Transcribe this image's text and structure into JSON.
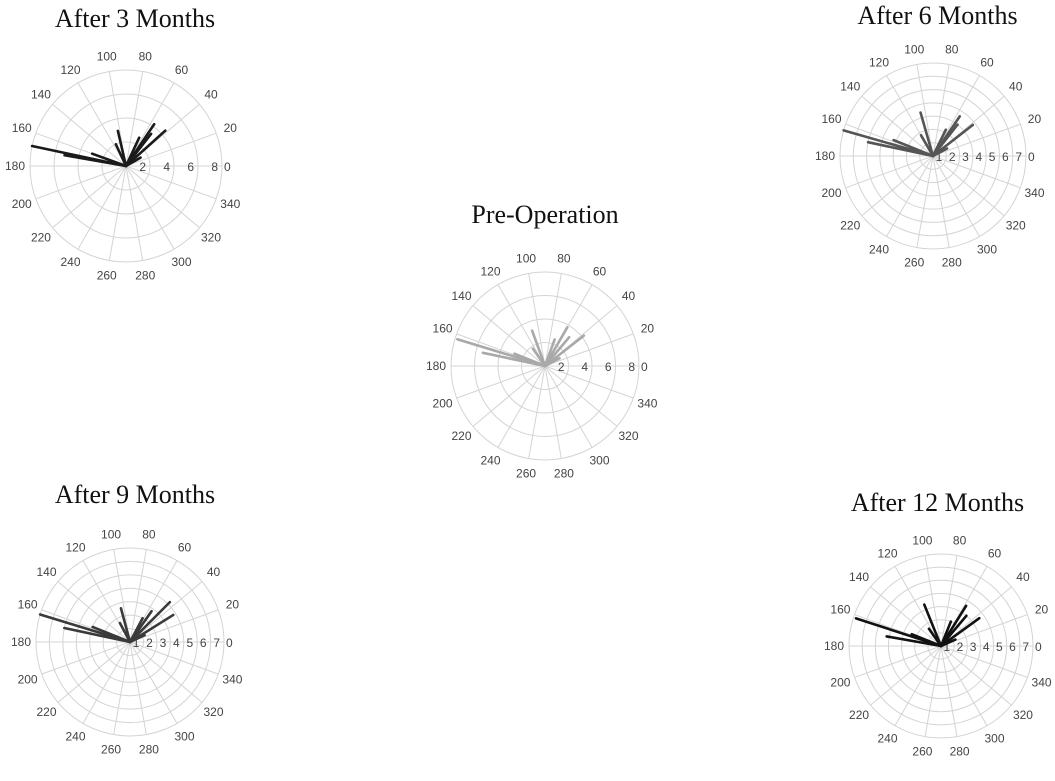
{
  "chart_data": [
    {
      "type": "polar-line",
      "title": "After 3 Months",
      "color": "#1a1a1a",
      "rmax": 8,
      "rticks": [
        "2",
        "4",
        "6",
        "8"
      ],
      "rzero": "0",
      "theta_labels": [
        "0",
        "20",
        "40",
        "60",
        "80",
        "100",
        "120",
        "140",
        "160",
        "180",
        "200",
        "220",
        "240",
        "260",
        "280",
        "300",
        "320",
        "340"
      ],
      "series": [
        {
          "theta": 168,
          "r": 8.0
        },
        {
          "theta": 170,
          "r": 5.2
        },
        {
          "theta": 160,
          "r": 3.0
        },
        {
          "theta": 103,
          "r": 3.0
        },
        {
          "theta": 115,
          "r": 2.0
        },
        {
          "theta": 56,
          "r": 4.2
        },
        {
          "theta": 52,
          "r": 3.4
        },
        {
          "theta": 42,
          "r": 4.4
        },
        {
          "theta": 65,
          "r": 2.6
        },
        {
          "theta": 30,
          "r": 1.4
        }
      ]
    },
    {
      "type": "polar-line",
      "title": "After 6 Months",
      "color": "#555555",
      "rmax": 7,
      "rticks": [
        "1",
        "2",
        "3",
        "4",
        "5",
        "6",
        "7"
      ],
      "rzero": "0",
      "theta_labels": [
        "0",
        "20",
        "40",
        "60",
        "80",
        "100",
        "120",
        "140",
        "160",
        "180",
        "200",
        "220",
        "240",
        "260",
        "280",
        "300",
        "320",
        "340"
      ],
      "series": [
        {
          "theta": 164,
          "r": 7.0
        },
        {
          "theta": 168,
          "r": 5.0
        },
        {
          "theta": 158,
          "r": 3.2
        },
        {
          "theta": 106,
          "r": 3.4
        },
        {
          "theta": 120,
          "r": 1.8
        },
        {
          "theta": 56,
          "r": 3.6
        },
        {
          "theta": 52,
          "r": 3.0
        },
        {
          "theta": 38,
          "r": 3.8
        },
        {
          "theta": 64,
          "r": 2.2
        },
        {
          "theta": 28,
          "r": 1.2
        }
      ]
    },
    {
      "type": "polar-line",
      "title": "Pre-Operation",
      "color": "#a9a9a9",
      "rmax": 8,
      "rticks": [
        "2",
        "4",
        "6",
        "8"
      ],
      "rzero": "0",
      "theta_labels": [
        "0",
        "20",
        "40",
        "60",
        "80",
        "100",
        "120",
        "140",
        "160",
        "180",
        "200",
        "220",
        "240",
        "260",
        "280",
        "300",
        "320",
        "340"
      ],
      "series": [
        {
          "theta": 163,
          "r": 7.8
        },
        {
          "theta": 168,
          "r": 5.4
        },
        {
          "theta": 158,
          "r": 2.8
        },
        {
          "theta": 110,
          "r": 3.2
        },
        {
          "theta": 125,
          "r": 1.8
        },
        {
          "theta": 60,
          "r": 3.8
        },
        {
          "theta": 50,
          "r": 3.2
        },
        {
          "theta": 38,
          "r": 4.2
        },
        {
          "theta": 70,
          "r": 2.4
        },
        {
          "theta": 28,
          "r": 1.4
        }
      ]
    },
    {
      "type": "polar-line",
      "title": "After 9 Months",
      "color": "#3a3a3a",
      "rmax": 7,
      "rticks": [
        "1",
        "2",
        "3",
        "4",
        "5",
        "6",
        "7"
      ],
      "rzero": "0",
      "theta_labels": [
        "0",
        "20",
        "40",
        "60",
        "80",
        "100",
        "120",
        "140",
        "160",
        "180",
        "200",
        "220",
        "240",
        "260",
        "280",
        "300",
        "320",
        "340"
      ],
      "series": [
        {
          "theta": 163,
          "r": 7.0
        },
        {
          "theta": 168,
          "r": 5.0
        },
        {
          "theta": 158,
          "r": 3.0
        },
        {
          "theta": 105,
          "r": 2.6
        },
        {
          "theta": 118,
          "r": 1.6
        },
        {
          "theta": 45,
          "r": 4.2
        },
        {
          "theta": 55,
          "r": 2.8
        },
        {
          "theta": 32,
          "r": 3.8
        },
        {
          "theta": 62,
          "r": 2.0
        },
        {
          "theta": 25,
          "r": 1.2
        }
      ]
    },
    {
      "type": "polar-line",
      "title": "After 12 Months",
      "color": "#111111",
      "rmax": 7,
      "rticks": [
        "1",
        "2",
        "3",
        "4",
        "5",
        "6",
        "7"
      ],
      "rzero": "0",
      "theta_labels": [
        "0",
        "20",
        "40",
        "60",
        "80",
        "100",
        "120",
        "140",
        "160",
        "180",
        "200",
        "220",
        "240",
        "260",
        "280",
        "300",
        "320",
        "340"
      ],
      "series": [
        {
          "theta": 162,
          "r": 6.8
        },
        {
          "theta": 170,
          "r": 4.2
        },
        {
          "theta": 158,
          "r": 2.4
        },
        {
          "theta": 112,
          "r": 3.4
        },
        {
          "theta": 125,
          "r": 1.6
        },
        {
          "theta": 58,
          "r": 3.6
        },
        {
          "theta": 50,
          "r": 3.0
        },
        {
          "theta": 36,
          "r": 3.6
        },
        {
          "theta": 68,
          "r": 2.0
        },
        {
          "theta": 24,
          "r": 1.2
        }
      ]
    }
  ]
}
